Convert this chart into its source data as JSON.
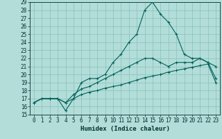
{
  "xlabel": "Humidex (Indice chaleur)",
  "xlim": [
    -0.5,
    23.5
  ],
  "ylim": [
    15,
    29
  ],
  "background_color": "#b2ddd8",
  "grid_color": "#8bbfba",
  "line_color": "#005f5a",
  "x_ticks": [
    0,
    1,
    2,
    3,
    4,
    5,
    6,
    7,
    8,
    9,
    10,
    11,
    12,
    13,
    14,
    15,
    16,
    17,
    18,
    19,
    20,
    21,
    22,
    23
  ],
  "y_ticks": [
    15,
    16,
    17,
    18,
    19,
    20,
    21,
    22,
    23,
    24,
    25,
    26,
    27,
    28,
    29
  ],
  "curve1_y": [
    16.5,
    17.0,
    17.0,
    17.0,
    15.5,
    17.0,
    19.0,
    19.5,
    19.5,
    20.0,
    21.5,
    22.5,
    24.0,
    25.0,
    28.0,
    29.0,
    27.5,
    26.5,
    25.0,
    22.5,
    22.0,
    22.0,
    21.5,
    19.5
  ],
  "curve2_y": [
    16.5,
    17.0,
    17.0,
    17.0,
    16.5,
    17.5,
    18.2,
    18.5,
    19.0,
    19.5,
    20.0,
    20.5,
    21.0,
    21.5,
    22.0,
    22.0,
    21.5,
    21.0,
    21.5,
    21.5,
    21.5,
    22.0,
    21.5,
    21.0
  ],
  "curve3_y": [
    16.5,
    17.0,
    17.0,
    17.0,
    16.5,
    17.0,
    17.5,
    17.8,
    18.0,
    18.3,
    18.5,
    18.7,
    19.0,
    19.3,
    19.6,
    19.8,
    20.0,
    20.3,
    20.5,
    20.7,
    20.9,
    21.1,
    21.3,
    19.0
  ],
  "tick_fontsize": 5.5,
  "xlabel_fontsize": 6.5
}
